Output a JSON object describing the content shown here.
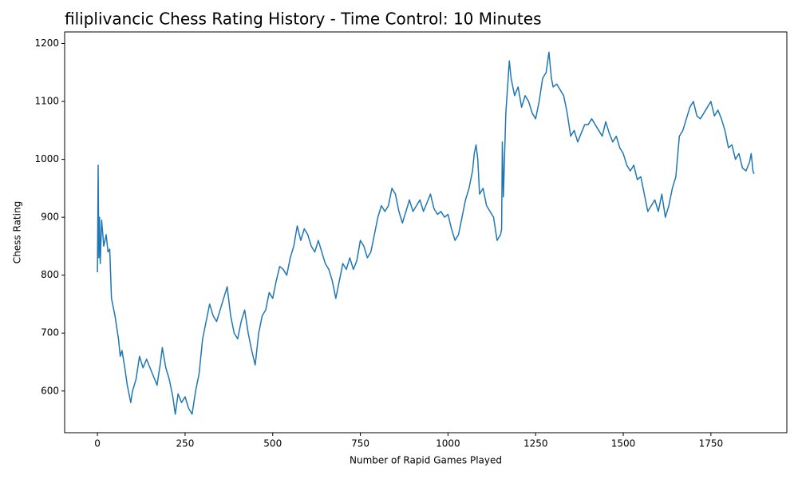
{
  "chart_data": {
    "type": "line",
    "title": "filiplivancic Chess Rating History - Time Control: 10 Minutes",
    "x_label": "Number of Rapid Games Played",
    "y_label": "Chess Rating",
    "color": "#1f77b4",
    "xlim": [
      -93.6,
      1966.6
    ],
    "ylim": [
      528,
      1220
    ],
    "xticks": [
      0,
      250,
      500,
      750,
      1000,
      1250,
      1500,
      1750
    ],
    "yticks": [
      600,
      700,
      800,
      900,
      1000,
      1100,
      1200
    ],
    "grid": false,
    "x": [
      0,
      2,
      4,
      6,
      8,
      12,
      18,
      25,
      30,
      35,
      40,
      50,
      60,
      65,
      70,
      78,
      85,
      95,
      100,
      110,
      120,
      130,
      140,
      150,
      160,
      170,
      180,
      185,
      195,
      205,
      215,
      222,
      230,
      240,
      250,
      260,
      270,
      280,
      290,
      300,
      310,
      320,
      330,
      340,
      350,
      360,
      370,
      380,
      390,
      400,
      410,
      420,
      430,
      440,
      450,
      460,
      470,
      480,
      490,
      500,
      510,
      520,
      530,
      540,
      550,
      560,
      570,
      580,
      590,
      600,
      610,
      620,
      630,
      640,
      650,
      660,
      670,
      680,
      690,
      700,
      710,
      720,
      730,
      740,
      750,
      760,
      770,
      780,
      790,
      800,
      810,
      820,
      830,
      840,
      850,
      860,
      870,
      880,
      890,
      900,
      910,
      920,
      930,
      940,
      950,
      960,
      970,
      980,
      990,
      1000,
      1010,
      1020,
      1030,
      1040,
      1050,
      1060,
      1070,
      1075,
      1080,
      1085,
      1090,
      1100,
      1110,
      1120,
      1130,
      1140,
      1150,
      1153,
      1155,
      1158,
      1165,
      1175,
      1180,
      1190,
      1200,
      1210,
      1220,
      1230,
      1240,
      1250,
      1260,
      1270,
      1280,
      1288,
      1295,
      1300,
      1310,
      1320,
      1330,
      1340,
      1350,
      1360,
      1370,
      1380,
      1390,
      1400,
      1410,
      1420,
      1430,
      1440,
      1450,
      1460,
      1470,
      1480,
      1490,
      1500,
      1510,
      1520,
      1530,
      1540,
      1550,
      1560,
      1570,
      1580,
      1590,
      1600,
      1610,
      1620,
      1630,
      1640,
      1650,
      1660,
      1670,
      1680,
      1690,
      1700,
      1710,
      1720,
      1730,
      1740,
      1750,
      1760,
      1770,
      1780,
      1790,
      1800,
      1810,
      1820,
      1830,
      1840,
      1850,
      1860,
      1865,
      1870,
      1873
    ],
    "values": [
      805,
      990,
      830,
      900,
      820,
      895,
      850,
      870,
      840,
      845,
      760,
      730,
      690,
      660,
      670,
      640,
      610,
      580,
      600,
      620,
      660,
      640,
      655,
      640,
      625,
      610,
      650,
      675,
      640,
      620,
      590,
      560,
      595,
      580,
      590,
      570,
      560,
      600,
      630,
      690,
      720,
      750,
      730,
      720,
      740,
      760,
      780,
      730,
      700,
      690,
      720,
      740,
      700,
      670,
      645,
      700,
      730,
      740,
      770,
      760,
      790,
      815,
      810,
      800,
      830,
      850,
      885,
      860,
      880,
      870,
      850,
      840,
      860,
      840,
      820,
      810,
      790,
      760,
      790,
      820,
      810,
      830,
      810,
      825,
      860,
      850,
      830,
      840,
      870,
      900,
      920,
      910,
      920,
      950,
      940,
      910,
      890,
      910,
      930,
      910,
      920,
      930,
      910,
      925,
      940,
      915,
      905,
      910,
      900,
      905,
      880,
      860,
      870,
      900,
      930,
      950,
      980,
      1010,
      1025,
      1000,
      940,
      950,
      920,
      910,
      900,
      860,
      870,
      880,
      1030,
      935,
      1080,
      1170,
      1140,
      1110,
      1125,
      1090,
      1110,
      1100,
      1080,
      1070,
      1100,
      1140,
      1150,
      1185,
      1140,
      1125,
      1130,
      1120,
      1110,
      1080,
      1040,
      1050,
      1030,
      1045,
      1060,
      1060,
      1070,
      1060,
      1050,
      1040,
      1065,
      1045,
      1030,
      1040,
      1020,
      1010,
      990,
      980,
      990,
      965,
      970,
      940,
      910,
      920,
      930,
      910,
      940,
      900,
      920,
      950,
      970,
      1040,
      1050,
      1070,
      1090,
      1100,
      1075,
      1070,
      1080,
      1090,
      1100,
      1075,
      1085,
      1070,
      1050,
      1020,
      1025,
      1000,
      1010,
      985,
      980,
      995,
      1010,
      980,
      975
    ]
  }
}
